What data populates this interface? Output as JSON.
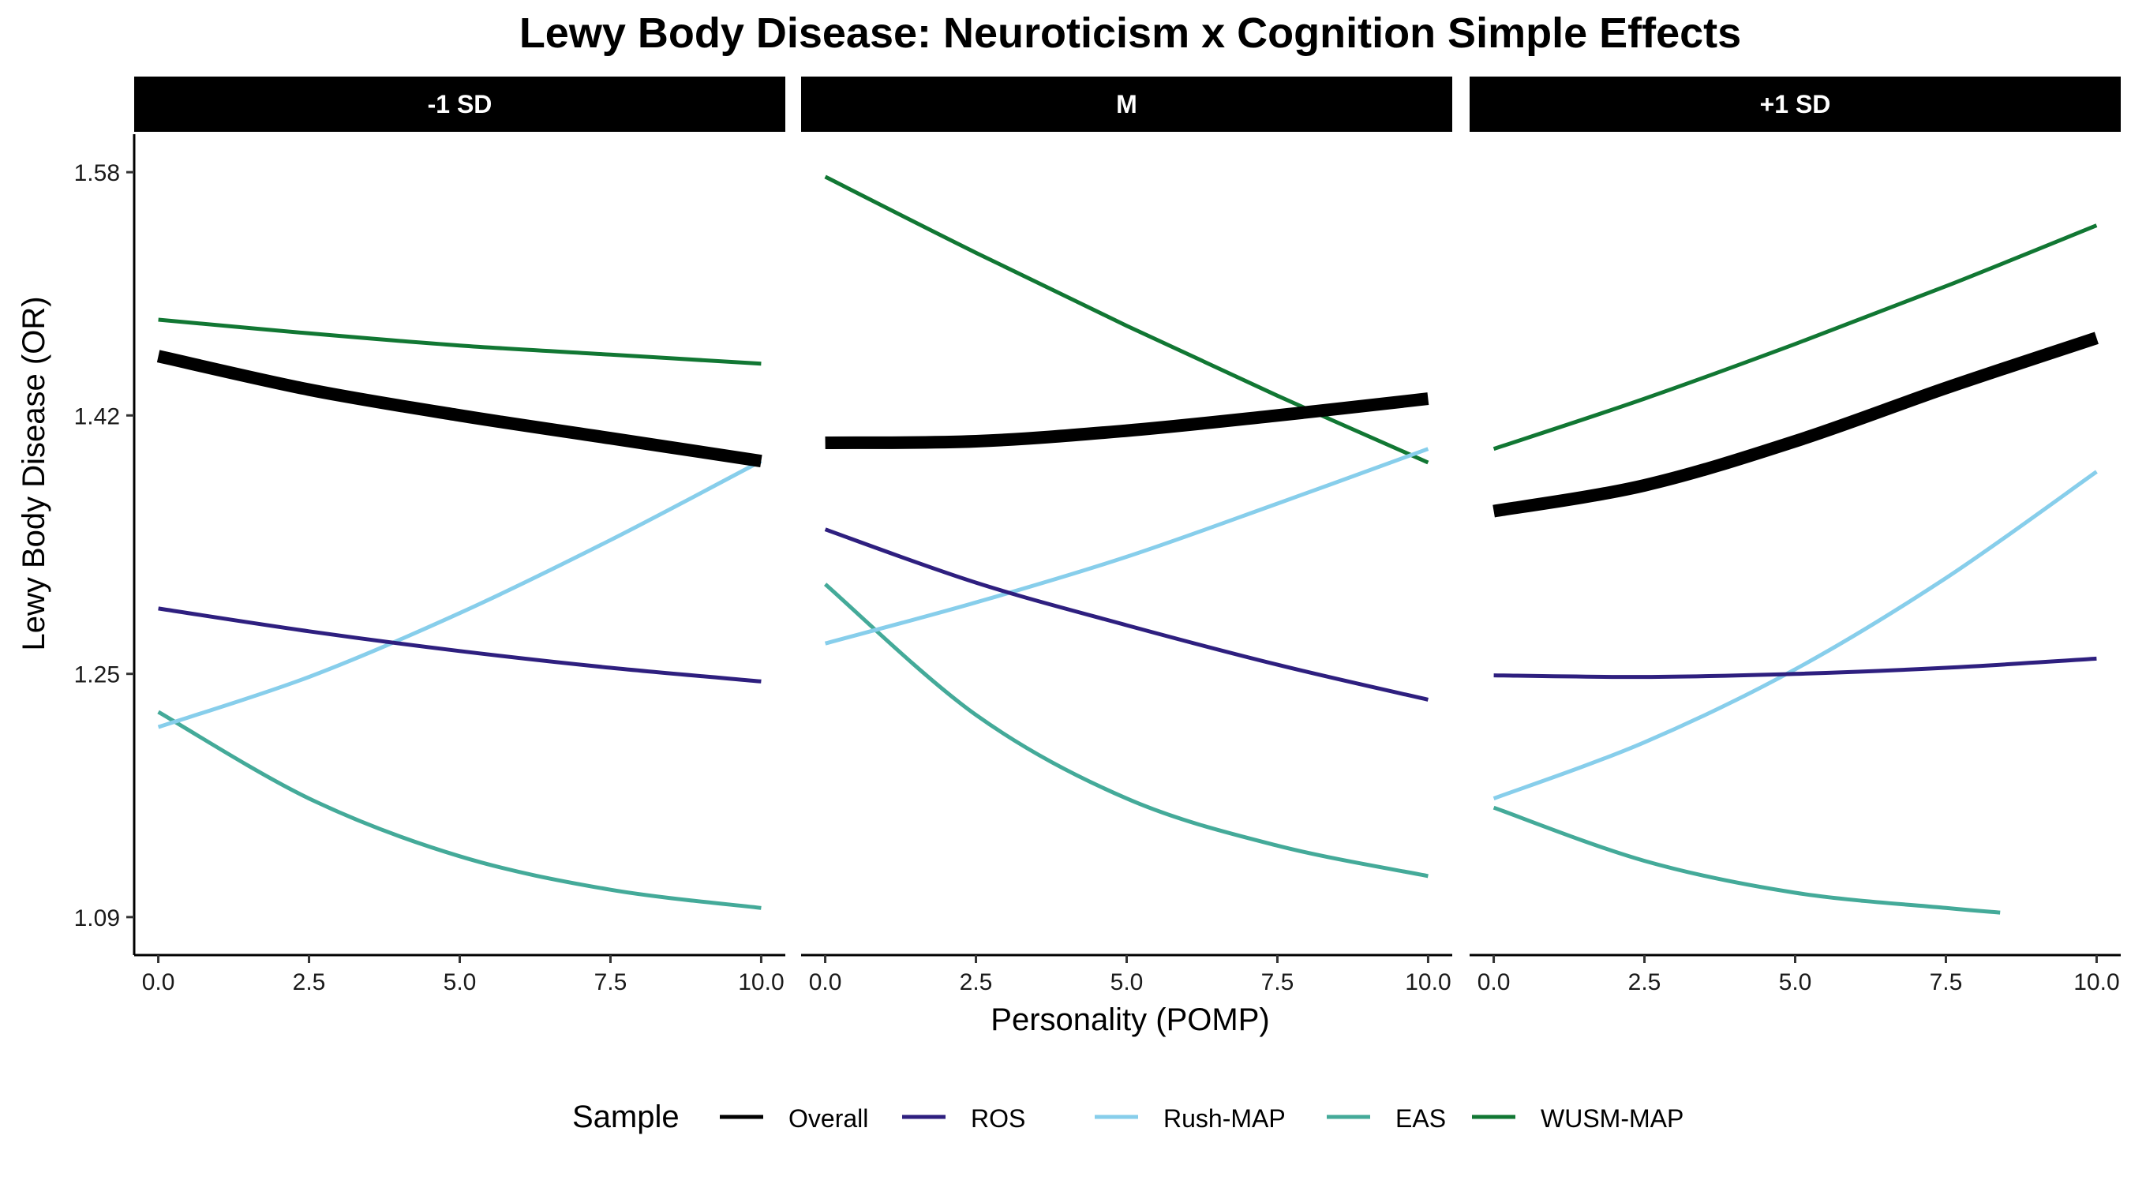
{
  "chart_data": {
    "type": "line",
    "title": "Lewy Body Disease: Neuroticism x Cognition Simple Effects",
    "xlabel": "Personality (POMP)",
    "ylabel": "Lewy Body Disease (OR)",
    "x_ticks": [
      "0.0",
      "2.5",
      "5.0",
      "7.5",
      "10.0"
    ],
    "y_ticks": [
      "1.09",
      "1.25",
      "1.42",
      "1.58"
    ],
    "xlim": [
      -0.4,
      10.4
    ],
    "ylim": [
      1.065,
      1.605
    ],
    "legend": {
      "title": "Sample",
      "position": "bottom",
      "entries": [
        "Overall",
        "ROS",
        "Rush-MAP",
        "EAS",
        "WUSM-MAP"
      ]
    },
    "grid": false,
    "colors": {
      "Overall": "#000000",
      "ROS": "#2e1f7f",
      "Rush-MAP": "#87ceeb",
      "EAS": "#44aa99",
      "WUSM-MAP": "#117733"
    },
    "panels": [
      {
        "label": "-1 SD",
        "series": [
          {
            "name": "Overall",
            "x": [
              0,
              2.5,
              5,
              7.5,
              10
            ],
            "y": [
              1.459,
              1.437,
              1.42,
              1.405,
              1.39
            ]
          },
          {
            "name": "ROS",
            "x": [
              0,
              2.5,
              5,
              7.5,
              10
            ],
            "y": [
              1.293,
              1.278,
              1.265,
              1.254,
              1.245
            ]
          },
          {
            "name": "Rush-MAP",
            "x": [
              0,
              2.5,
              5,
              7.5,
              10
            ],
            "y": [
              1.215,
              1.248,
              1.29,
              1.338,
              1.39
            ]
          },
          {
            "name": "EAS",
            "x": [
              0,
              2.5,
              5,
              7.5,
              10
            ],
            "y": [
              1.225,
              1.168,
              1.13,
              1.108,
              1.096
            ]
          },
          {
            "name": "WUSM-MAP",
            "x": [
              0,
              2.5,
              5,
              7.5,
              10
            ],
            "y": [
              1.483,
              1.474,
              1.466,
              1.46,
              1.454
            ]
          }
        ]
      },
      {
        "label": "M",
        "series": [
          {
            "name": "Overall",
            "x": [
              0,
              2.5,
              5,
              7.5,
              10
            ],
            "y": [
              1.402,
              1.403,
              1.41,
              1.42,
              1.431
            ]
          },
          {
            "name": "ROS",
            "x": [
              0,
              2.5,
              5,
              7.5,
              10
            ],
            "y": [
              1.345,
              1.31,
              1.282,
              1.256,
              1.233
            ]
          },
          {
            "name": "Rush-MAP",
            "x": [
              0,
              2.5,
              5,
              7.5,
              10
            ],
            "y": [
              1.27,
              1.297,
              1.327,
              1.362,
              1.398
            ]
          },
          {
            "name": "EAS",
            "x": [
              0,
              2.5,
              5,
              7.5,
              10
            ],
            "y": [
              1.309,
              1.223,
              1.168,
              1.137,
              1.117
            ]
          },
          {
            "name": "WUSM-MAP",
            "x": [
              0,
              2.5,
              5,
              7.5,
              10
            ],
            "y": [
              1.577,
              1.527,
              1.479,
              1.433,
              1.389
            ]
          }
        ]
      },
      {
        "label": "+1 SD",
        "series": [
          {
            "name": "Overall",
            "x": [
              0,
              2.5,
              5,
              7.5,
              10
            ],
            "y": [
              1.357,
              1.374,
              1.403,
              1.438,
              1.471
            ]
          },
          {
            "name": "ROS",
            "x": [
              0,
              2.5,
              5,
              7.5,
              10
            ],
            "y": [
              1.249,
              1.248,
              1.25,
              1.254,
              1.26
            ]
          },
          {
            "name": "Rush-MAP",
            "x": [
              0,
              2.5,
              5,
              7.5,
              10
            ],
            "y": [
              1.168,
              1.205,
              1.253,
              1.313,
              1.383
            ]
          },
          {
            "name": "EAS",
            "x": [
              0,
              2.5,
              5,
              7.5,
              8.4
            ],
            "y": [
              1.162,
              1.127,
              1.106,
              1.096,
              1.093
            ]
          },
          {
            "name": "WUSM-MAP",
            "x": [
              0,
              2.5,
              5,
              7.5,
              10
            ],
            "y": [
              1.398,
              1.431,
              1.467,
              1.505,
              1.545
            ]
          }
        ]
      }
    ]
  }
}
